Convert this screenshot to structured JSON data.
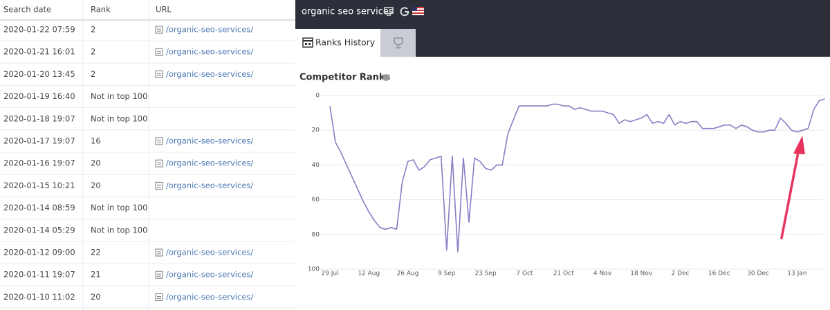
{
  "table": {
    "headers": [
      "Search date",
      "Rank",
      "URL"
    ],
    "rows": [
      [
        "2020-01-22 07:59",
        "2",
        "/organic-seo-services/"
      ],
      [
        "2020-01-21 16:01",
        "2",
        "/organic-seo-services/"
      ],
      [
        "2020-01-20 13:45",
        "2",
        "/organic-seo-services/"
      ],
      [
        "2020-01-19 16:40",
        "Not in top 100"
      ],
      [
        "2020-01-18 19:07",
        "Not in top 100"
      ],
      [
        "2020-01-17 19:07",
        "16",
        "/organic-seo-services/"
      ],
      [
        "2020-01-16 19:07",
        "20",
        "/organic-seo-services/"
      ],
      [
        "2020-01-15 10:21",
        "20",
        "/organic-seo-services/"
      ],
      [
        "2020-01-14 08:59",
        "Not in top 100"
      ],
      [
        "2020-01-14 05:29",
        "Not in top 100"
      ],
      [
        "2020-01-12 09:00",
        "22",
        "/organic-seo-services/"
      ],
      [
        "2020-01-11 19:07",
        "21",
        "/organic-seo-services/"
      ],
      [
        "2020-01-10 11:02",
        "20",
        "/organic-seo-services/"
      ]
    ]
  },
  "panel": {
    "keyword": "organic seo services",
    "tab": "Ranks History"
  },
  "chart_data": {
    "type": "line",
    "title": "Competitor Ranks",
    "color": "#8a7cc4",
    "grid": true,
    "categories": [
      "29 Jul",
      null,
      null,
      null,
      null,
      null,
      null,
      "12 Aug",
      null,
      null,
      null,
      null,
      null,
      null,
      "26 Aug",
      null,
      null,
      null,
      null,
      null,
      null,
      "9 Sep",
      null,
      null,
      null,
      null,
      null,
      null,
      "23 Sep",
      null,
      null,
      null,
      null,
      null,
      null,
      "7 Oct",
      null,
      null,
      null,
      null,
      null,
      null,
      "21 Oct",
      null,
      null,
      null,
      null,
      null,
      null,
      "4 Nov",
      null,
      null,
      null,
      null,
      null,
      null,
      "18 Nov",
      null,
      null,
      null,
      null,
      null,
      null,
      "2 Dec",
      null,
      null,
      null,
      null,
      null,
      null,
      "16 Dec",
      null,
      null,
      null,
      null,
      null,
      null,
      "30 Dec",
      null,
      null,
      null,
      null,
      null,
      null,
      "13 Jan",
      null,
      null,
      null,
      null,
      null
    ],
    "values": [
      6,
      27,
      33,
      40,
      47,
      54,
      61,
      67,
      72,
      76,
      77,
      76,
      77,
      50,
      38,
      37,
      43,
      41,
      37,
      36,
      35,
      89,
      35,
      90,
      36,
      73,
      36,
      38,
      42,
      43,
      40,
      40,
      22,
      14,
      6,
      6,
      6,
      6,
      6,
      6,
      5,
      5,
      6,
      6,
      8,
      7,
      8,
      9,
      9,
      9,
      10,
      11,
      16,
      14,
      15,
      14,
      13,
      11,
      16,
      15,
      16,
      11,
      17,
      15,
      16,
      15,
      15,
      19,
      19,
      19,
      18,
      17,
      17,
      19,
      17,
      18,
      20,
      21,
      21,
      20,
      20,
      13,
      16,
      20,
      21,
      20,
      19,
      8,
      3,
      2
    ],
    "ylim": [
      100,
      0
    ],
    "yticks": [
      0,
      20,
      40,
      60,
      80,
      100
    ]
  }
}
